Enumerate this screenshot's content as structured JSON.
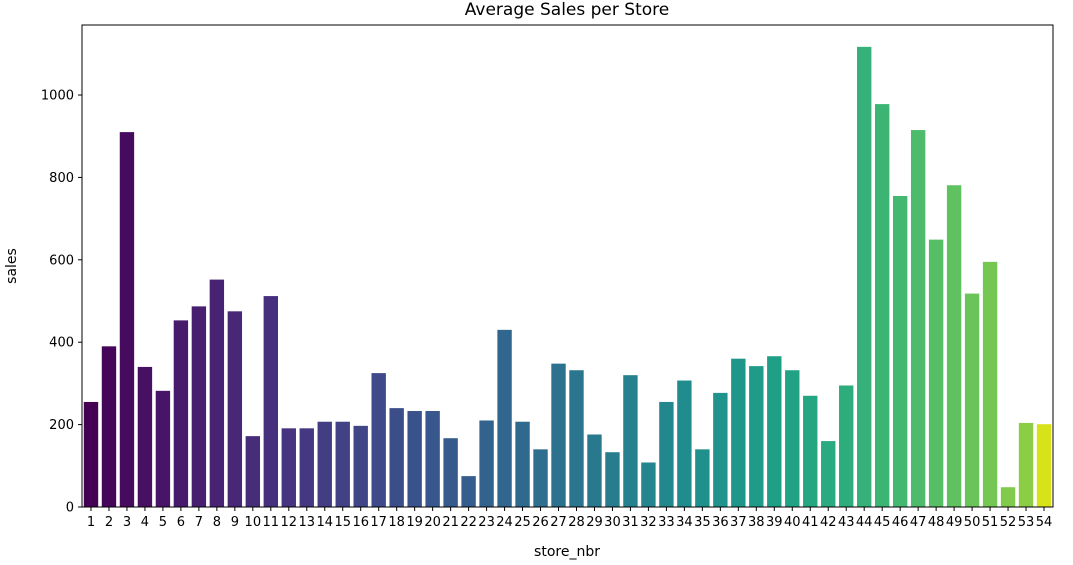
{
  "chart_data": {
    "type": "bar",
    "title": "Average Sales per Store",
    "xlabel": "store_nbr",
    "ylabel": "sales",
    "ylim": [
      0,
      1170
    ],
    "yticks": [
      0,
      200,
      400,
      600,
      800,
      1000
    ],
    "grid": false,
    "legend": "none",
    "palette": "viridis",
    "categories": [
      "1",
      "2",
      "3",
      "4",
      "5",
      "6",
      "7",
      "8",
      "9",
      "10",
      "11",
      "12",
      "13",
      "14",
      "15",
      "16",
      "17",
      "18",
      "19",
      "20",
      "21",
      "22",
      "23",
      "24",
      "25",
      "26",
      "27",
      "28",
      "29",
      "30",
      "31",
      "32",
      "33",
      "34",
      "35",
      "36",
      "37",
      "38",
      "39",
      "40",
      "41",
      "42",
      "43",
      "44",
      "45",
      "46",
      "47",
      "48",
      "49",
      "50",
      "51",
      "52",
      "53",
      "54"
    ],
    "values": [
      255,
      390,
      910,
      340,
      282,
      453,
      487,
      552,
      475,
      172,
      512,
      191,
      191,
      207,
      207,
      197,
      325,
      240,
      233,
      233,
      167,
      75,
      210,
      430,
      207,
      140,
      348,
      332,
      176,
      133,
      320,
      108,
      255,
      307,
      140,
      277,
      360,
      342,
      366,
      332,
      270,
      160,
      295,
      1117,
      978,
      755,
      915,
      649,
      781,
      518,
      595,
      48,
      204,
      201
    ],
    "colors": [
      "#440154",
      "#450559",
      "#460b5e",
      "#471063",
      "#481467",
      "#481a6c",
      "#481e70",
      "#482374",
      "#482777",
      "#472c7a",
      "#46307e",
      "#463480",
      "#453882",
      "#433d84",
      "#424186",
      "#404588",
      "#3e4a89",
      "#3c4e8a",
      "#3a528b",
      "#38578c",
      "#365a8c",
      "#355e8d",
      "#33628d",
      "#31668e",
      "#2f6a8e",
      "#2e6e8e",
      "#2c718e",
      "#2b758e",
      "#29798e",
      "#277d8e",
      "#26818e",
      "#24858e",
      "#23888e",
      "#218c8d",
      "#20908d",
      "#1f938c",
      "#1e978a",
      "#1f9b89",
      "#209f87",
      "#22a285",
      "#25a683",
      "#29aa80",
      "#2ead7c",
      "#35b179",
      "#3cb474",
      "#44b770",
      "#4dbb6b",
      "#56be65",
      "#5fc160",
      "#6ac45a",
      "#75c753",
      "#80ca4c",
      "#8bcd45",
      "#d8e219"
    ]
  }
}
